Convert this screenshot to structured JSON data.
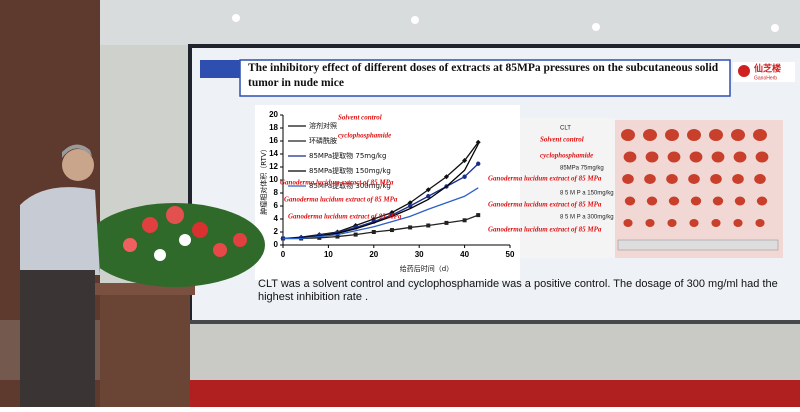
{
  "slide": {
    "title": "The inhibitory effect of different doses of extracts at 85MPa pressures on the subcutaneous solid tumor in nude mice",
    "logo": {
      "cn": "仙芝楼",
      "en": "GanoHerb"
    },
    "caption": "CLT was a solvent control and cyclophosphamide was a positive control. The dosage of 300 mg/ml had the highest inhibition rate .",
    "chart": {
      "type": "line",
      "x_label": "给药后时间（d）",
      "y_label": "肿瘤相对体积（RTV）",
      "x": [
        0,
        4,
        8,
        12,
        16,
        20,
        24,
        28,
        32,
        36,
        40,
        43
      ],
      "xlim": [
        0,
        50
      ],
      "xticks": [
        0,
        10,
        20,
        30,
        40,
        50
      ],
      "ylim": [
        0,
        20
      ],
      "yticks": [
        0,
        2,
        4,
        6,
        8,
        10,
        12,
        14,
        16,
        18,
        20
      ],
      "series": [
        {
          "name": "溶剂对照",
          "color": "#111111",
          "marker": "diamond",
          "values": [
            1,
            1.2,
            1.6,
            2,
            3,
            4,
            5,
            6.5,
            8.5,
            10.5,
            13,
            15.8
          ]
        },
        {
          "name": "环磷酰胺",
          "color": "#222222",
          "marker": "square",
          "values": [
            1,
            1,
            1.1,
            1.3,
            1.6,
            2,
            2.3,
            2.7,
            3,
            3.4,
            3.8,
            4.6
          ]
        },
        {
          "name": "85MPa提取物 75mg/kg",
          "color": "#1a2f8a",
          "marker": "circle",
          "values": [
            1,
            1.1,
            1.5,
            1.9,
            2.7,
            3.6,
            4.6,
            6,
            7.5,
            9,
            10.5,
            12.5
          ]
        },
        {
          "name": "85MPa提取物 150mg/kg",
          "color": "#000000",
          "marker": "none",
          "values": [
            1,
            1.1,
            1.4,
            1.8,
            2.5,
            3.4,
            4.4,
            5.6,
            7,
            9,
            11.5,
            15.5
          ]
        },
        {
          "name": "85MPa提取物 300mg/kg",
          "color": "#2c5fc9",
          "marker": "none",
          "values": [
            1,
            1,
            1.3,
            1.6,
            2.2,
            2.8,
            3.6,
            4.4,
            5.5,
            6.5,
            7.5,
            8.8
          ]
        }
      ],
      "overlay_labels": [
        "Solvent control",
        "cyclophosphamide",
        "Ganoderma lucidum extract of 85 MPa",
        "Ganoderma lucidum extract of 85 MPa",
        "Ganoderma lucidum extract of 85 MPa"
      ]
    },
    "photo_labels": {
      "group_texts": [
        "CLT",
        "85MPa 75mg/kg",
        "8 5 M P a 150mg/kg",
        "8 5 M P a 300mg/kg"
      ],
      "overlay_labels": [
        "Solvent control",
        "cyclophosphamide",
        "Ganoderma lucidum extract of 85 MPa",
        "Ganoderma lucidum extract of 85 MPa",
        "Ganoderma lucidum extract of 85 MPa"
      ]
    }
  }
}
